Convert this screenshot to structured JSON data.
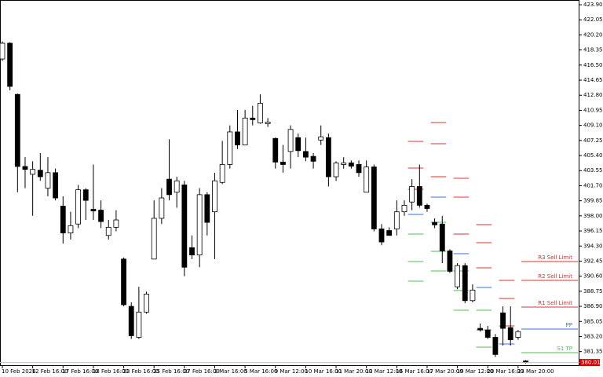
{
  "chart_data": {
    "type": "candlestick",
    "categories": [
      "10 Feb 2026",
      null,
      null,
      null,
      "12 Feb 16:00",
      null,
      null,
      null,
      "17 Feb 16:00",
      null,
      null,
      null,
      "18 Feb 16:00",
      null,
      null,
      null,
      "23 Feb 16:00",
      null,
      null,
      null,
      "25 Feb 16:00",
      null,
      null,
      null,
      "27 Feb 16:00",
      null,
      null,
      null,
      "3 Mar 16:00",
      null,
      null,
      null,
      "5 Mar 16:00",
      null,
      null,
      null,
      "9 Mar 12:00",
      null,
      null,
      null,
      "10 Mar 16:00",
      null,
      null,
      null,
      "11 Mar 20:00",
      null,
      null,
      null,
      "13 Mar 12:00",
      null,
      null,
      null,
      "16 Mar 16:00",
      null,
      null,
      null,
      "17 Mar 20:00",
      null,
      null,
      null,
      "19 Mar 12:00",
      null,
      null,
      null,
      "20 Mar 16:00",
      null,
      null,
      null,
      "23 Mar 20:00",
      null
    ],
    "open": [
      417.25,
      419.18,
      412.9,
      404.06,
      403.1,
      403.6,
      401.4,
      403.3,
      399.2,
      395.9,
      397.0,
      401.2,
      398.8,
      398.7,
      395.6,
      396.6,
      392.7,
      386.9,
      383.1,
      386.2,
      392.7,
      397.7,
      402.5,
      400.9,
      401.8,
      394.1,
      393.2,
      400.6,
      398.5,
      402.1,
      404.3,
      408.3,
      406.7,
      410.0,
      409.4,
      409.3,
      407.5,
      404.6,
      405.9,
      407.6,
      405.9,
      405.3,
      407.3,
      407.6,
      402.8,
      404.3,
      404.5,
      404.3,
      400.9,
      404.0,
      396.4,
      396.2,
      396.4,
      398.5,
      399.7,
      401.6,
      399.3,
      397.2,
      397.0,
      393.7,
      389.3,
      391.9,
      387.6,
      384.2,
      384.0,
      383.1,
      386.1,
      384.3,
      383.1,
      380.2
    ],
    "high": [
      419.4,
      419.3,
      413.0,
      405.2,
      404.7,
      405.7,
      405.2,
      403.8,
      400.4,
      398.5,
      401.8,
      401.4,
      404.3,
      399.9,
      397.5,
      398.7,
      392.9,
      387.4,
      389.3,
      388.7,
      399.9,
      401.4,
      407.4,
      402.8,
      402.3,
      395.6,
      401.4,
      400.9,
      403.3,
      407.2,
      409.1,
      411.0,
      411.0,
      411.5,
      412.9,
      410.0,
      407.6,
      406.7,
      409.1,
      408.1,
      407.6,
      405.7,
      409.1,
      408.1,
      404.7,
      405.2,
      404.8,
      404.8,
      404.8,
      404.3,
      397.0,
      396.6,
      399.9,
      399.9,
      402.5,
      404.3,
      399.5,
      397.7,
      398.0,
      393.9,
      392.2,
      392.2,
      389.6,
      384.8,
      384.5,
      383.5,
      386.9,
      386.9,
      384.0,
      380.3
    ],
    "low": [
      417.0,
      413.4,
      400.9,
      401.4,
      398.0,
      402.3,
      400.4,
      399.9,
      394.6,
      395.1,
      396.5,
      397.5,
      397.5,
      396.5,
      395.1,
      396.1,
      386.9,
      382.9,
      382.9,
      386.0,
      392.7,
      397.0,
      399.9,
      399.0,
      390.6,
      392.7,
      391.7,
      395.6,
      392.7,
      401.9,
      403.8,
      406.2,
      406.7,
      409.1,
      409.3,
      408.9,
      403.8,
      403.3,
      403.8,
      405.2,
      404.7,
      403.8,
      406.7,
      401.6,
      402.3,
      403.8,
      403.8,
      402.8,
      400.9,
      396.1,
      394.4,
      395.6,
      395.6,
      398.0,
      398.7,
      399.0,
      398.5,
      396.5,
      392.2,
      391.0,
      389.0,
      387.3,
      387.4,
      383.8,
      382.9,
      380.7,
      382.1,
      382.1,
      382.8,
      379.9
    ],
    "close": [
      419.18,
      413.88,
      404.06,
      403.7,
      403.7,
      402.8,
      403.3,
      400.2,
      395.9,
      396.8,
      401.2,
      399.9,
      398.6,
      397.3,
      396.6,
      397.5,
      387.1,
      383.3,
      386.2,
      388.4,
      397.7,
      400.2,
      400.6,
      402.3,
      391.7,
      393.2,
      400.6,
      397.2,
      402.3,
      404.3,
      408.3,
      406.7,
      410.0,
      409.8,
      411.8,
      409.5,
      404.6,
      404.3,
      408.6,
      406.0,
      405.2,
      404.7,
      407.7,
      402.8,
      404.5,
      404.5,
      404.1,
      403.3,
      404.0,
      396.4,
      394.8,
      395.6,
      398.5,
      399.3,
      401.6,
      399.3,
      398.9,
      396.9,
      393.7,
      391.2,
      391.9,
      387.6,
      388.9,
      384.0,
      383.1,
      381.0,
      384.2,
      382.8,
      383.8,
      380.01
    ],
    "ylim": [
      379.68,
      424.48
    ],
    "yticks": [
      {
        "value": 381.35,
        "label": "381.35"
      },
      {
        "value": 383.2,
        "label": "383.20"
      },
      {
        "value": 385.05,
        "label": "385.05"
      },
      {
        "value": 386.9,
        "label": "386.90"
      },
      {
        "value": 388.75,
        "label": "388.75"
      },
      {
        "value": 390.6,
        "label": "390.60"
      },
      {
        "value": 392.45,
        "label": "392.45"
      },
      {
        "value": 394.3,
        "label": "394.30"
      },
      {
        "value": 396.15,
        "label": "396.15"
      },
      {
        "value": 398,
        "label": "398.00"
      },
      {
        "value": 399.85,
        "label": "399.85"
      },
      {
        "value": 401.7,
        "label": "401.70"
      },
      {
        "value": 403.55,
        "label": "403.55"
      },
      {
        "value": 405.4,
        "label": "405.40"
      },
      {
        "value": 407.25,
        "label": "407.25"
      },
      {
        "value": 409.1,
        "label": "409.10"
      },
      {
        "value": 410.95,
        "label": "410.95"
      },
      {
        "value": 412.8,
        "label": "412.80"
      },
      {
        "value": 414.65,
        "label": "414.65"
      },
      {
        "value": 416.5,
        "label": "416.50"
      },
      {
        "value": 418.35,
        "label": "418.35"
      },
      {
        "value": 420.2,
        "label": "420.20"
      },
      {
        "value": 422.05,
        "label": "422.05"
      },
      {
        "value": 423.9,
        "label": "423.90"
      }
    ],
    "last_price": {
      "value": 380.01,
      "label": "380.01",
      "color": "#e00000"
    },
    "pivot_colors": {
      "r": "#e03030",
      "pp": "#3d6ee0",
      "s": "#4cc04c"
    },
    "pivot_history": [
      {
        "start": 54,
        "end": 55,
        "r": [
          407.14,
          403.86,
          401.26
        ],
        "pp": 398.18,
        "s": [
          395.77,
          392.4,
          389.99
        ]
      },
      {
        "start": 57,
        "end": 58,
        "r": [
          409.45,
          406.85,
          402.8
        ],
        "pp": 400.3,
        "s": [
          397.22,
          393.65,
          391.24
        ]
      },
      {
        "start": 60,
        "end": 61,
        "r": [
          402.61,
          400.3,
          395.77
        ],
        "pp": 393.36,
        "s": [
          391.24,
          388.84,
          386.43
        ]
      },
      {
        "start": 63,
        "end": 64,
        "r": [
          396.93,
          394.71,
          391.63
        ],
        "pp": 389.22,
        "s": [
          386.43,
          384.02,
          381.9
        ]
      },
      {
        "start": 66,
        "end": 67,
        "r": [
          390.09,
          387.87,
          384.5
        ],
        "pp": 382.28,
        "s": []
      }
    ],
    "levels": [
      {
        "name": "R3 Sell Limit",
        "value": 392.4,
        "color": "#e03030"
      },
      {
        "name": "R2 Sell Limit",
        "value": 390.09,
        "color": "#e03030"
      },
      {
        "name": "R1 Sell Limit",
        "value": 386.81,
        "color": "#e03030"
      },
      {
        "name": "PP",
        "value": 384.11,
        "color": "#3d6ee0"
      },
      {
        "name": "S1 TP",
        "value": 381.22,
        "color": "#4cc04c"
      }
    ]
  }
}
